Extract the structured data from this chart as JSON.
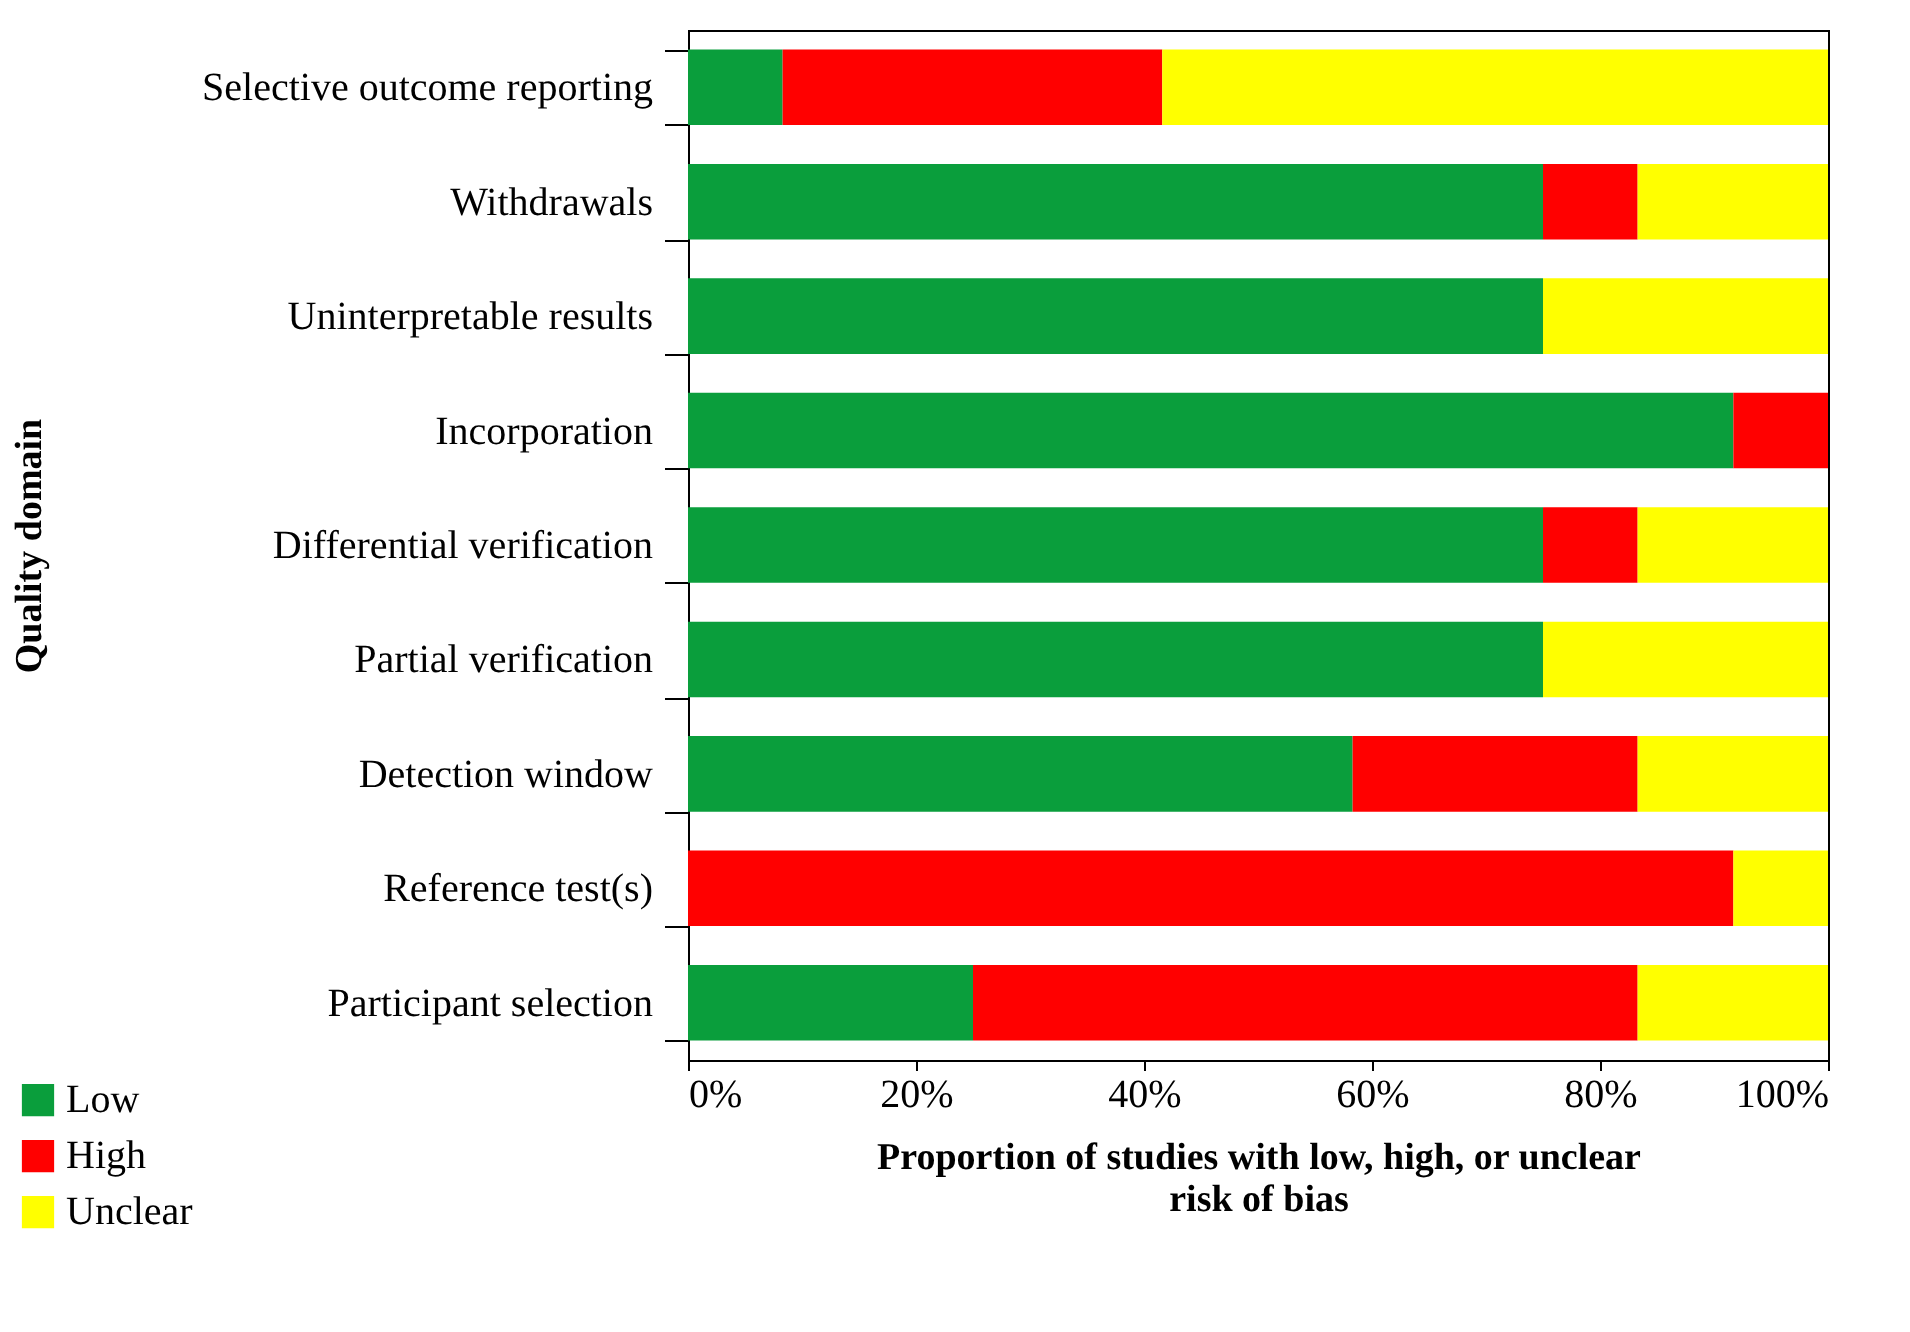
{
  "chart_data": {
    "type": "bar",
    "orientation": "horizontal",
    "stacked": true,
    "categories": [
      "Selective outcome reporting",
      "Withdrawals",
      "Uninterpretable results",
      "Incorporation",
      "Differential verification",
      "Partial verification",
      "Detection window",
      "Reference test(s)",
      "Participant selection"
    ],
    "series": [
      {
        "name": "Low",
        "color": "#0a9e3c",
        "values": [
          8.3,
          75,
          75,
          91.7,
          75,
          75,
          58.3,
          0,
          25
        ]
      },
      {
        "name": "High",
        "color": "#ff0000",
        "values": [
          33.3,
          8.3,
          0,
          8.3,
          8.3,
          0,
          25,
          91.7,
          58.3
        ]
      },
      {
        "name": "Unclear",
        "color": "#ffff00",
        "values": [
          58.4,
          16.7,
          25,
          0,
          16.7,
          25,
          16.7,
          8.3,
          16.7
        ]
      }
    ],
    "xlim": [
      0,
      100
    ],
    "xticks": [
      {
        "value": 0,
        "label": "0%"
      },
      {
        "value": 20,
        "label": "20%"
      },
      {
        "value": 40,
        "label": "40%"
      },
      {
        "value": 60,
        "label": "60%"
      },
      {
        "value": 80,
        "label": "80%"
      },
      {
        "value": 100,
        "label": "100%"
      }
    ],
    "xlabel": "Proportion of studies with low, high, or unclear risk of bias",
    "ylabel": "Quality domain",
    "legend": "bottom left",
    "grid": false
  }
}
